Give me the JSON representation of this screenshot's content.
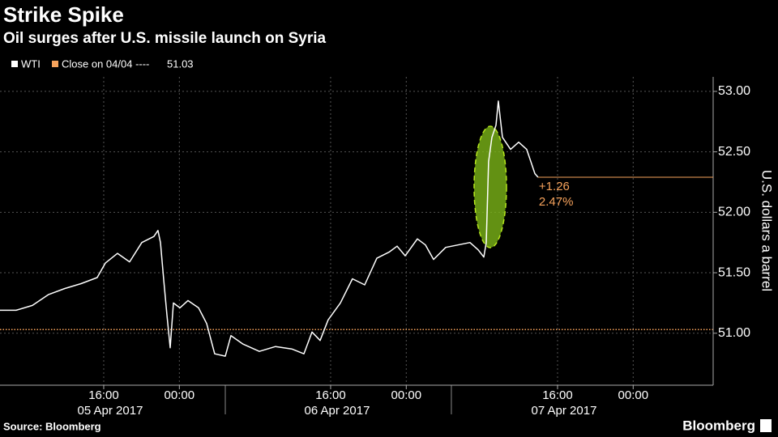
{
  "chart_data": {
    "type": "line",
    "title": "Strike Spike",
    "subtitle": "Oil surges after U.S. missile launch on Syria",
    "ylabel": "U.S. dollars a barrel",
    "source": "Source: Bloomberg",
    "brand": "Bloomberg",
    "x": [
      5.03,
      6.74,
      8.46,
      10.17,
      11.89,
      13.6,
      15.31,
      16.17,
      17.46,
      18.74,
      20.03,
      21.31,
      21.74,
      22.0,
      22.34,
      22.69,
      23.03,
      23.37,
      24.06,
      24.91,
      26.03,
      26.89,
      27.74,
      28.86,
      29.46,
      30.74,
      32.46,
      34.17,
      35.89,
      37.17,
      38.03,
      38.89,
      39.74,
      41.03,
      42.31,
      43.6,
      44.89,
      46.17,
      47.03,
      47.89,
      49.17,
      50.03,
      50.89,
      52.17,
      53.46,
      54.74,
      55.6,
      56.2,
      56.46,
      56.71,
      57.06,
      57.49,
      57.74,
      58.17,
      59.03,
      59.89,
      60.74,
      61.17,
      61.6,
      61.94
    ],
    "series": [
      {
        "name": "WTI",
        "color": "#ffffff",
        "values": [
          51.19,
          51.19,
          51.23,
          51.32,
          51.37,
          51.41,
          51.46,
          51.58,
          51.66,
          51.59,
          51.75,
          51.8,
          51.85,
          51.75,
          51.45,
          51.15,
          50.88,
          51.25,
          51.21,
          51.27,
          51.21,
          51.08,
          50.83,
          50.81,
          50.98,
          50.91,
          50.85,
          50.89,
          50.87,
          50.83,
          51.01,
          50.94,
          51.11,
          51.25,
          51.45,
          51.4,
          51.62,
          51.67,
          51.72,
          51.64,
          51.78,
          51.73,
          51.61,
          51.71,
          51.73,
          51.75,
          51.69,
          51.63,
          51.75,
          52.42,
          52.62,
          52.72,
          52.92,
          52.62,
          52.52,
          52.58,
          52.52,
          52.42,
          52.32,
          52.29
        ]
      }
    ],
    "reference": {
      "name": "Close on 04/04 ----",
      "value": 51.03,
      "color": "#f7a35c"
    },
    "annotations": [
      "+1.26",
      "2.47%"
    ],
    "xlim": [
      5.03,
      80.46
    ],
    "ylim": [
      50.57,
      53.12
    ],
    "xticks": [
      {
        "value": 16,
        "label": "16:00"
      },
      {
        "value": 24,
        "label": "00:00"
      },
      {
        "value": 40,
        "label": "16:00"
      },
      {
        "value": 48,
        "label": "00:00"
      },
      {
        "value": 64,
        "label": "16:00"
      },
      {
        "value": 72,
        "label": "00:00"
      }
    ],
    "day_ticks": [
      28.86,
      52.77
    ],
    "date_labels": [
      "05 Apr 2017",
      "06 Apr 2017",
      "07 Apr 2017"
    ],
    "yticks": [
      {
        "value": 51,
        "label": "51.00"
      },
      {
        "value": 51.5,
        "label": "51.50"
      },
      {
        "value": 52,
        "label": "52.00"
      },
      {
        "value": 52.5,
        "label": "52.50"
      },
      {
        "value": 53,
        "label": "53.00"
      }
    ],
    "grid": true
  }
}
